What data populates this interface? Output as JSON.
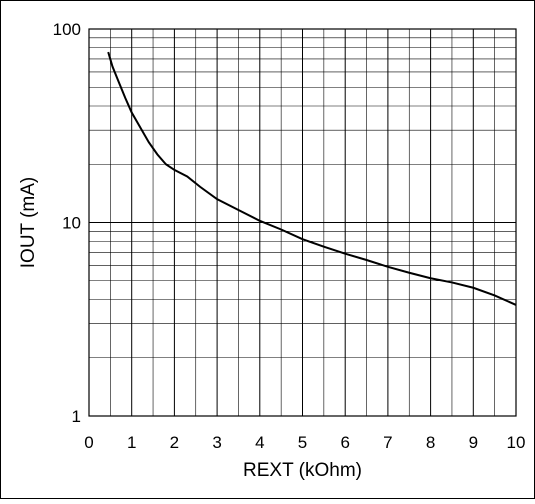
{
  "chart_data": {
    "type": "line",
    "title": "",
    "xlabel": "REXT (kOhm)",
    "ylabel": "IOUT (mA)",
    "xlim": [
      0,
      10
    ],
    "ylim": [
      1,
      100
    ],
    "yscale": "log",
    "grid": true,
    "x_ticks": [
      "0",
      "1",
      "2",
      "3",
      "4",
      "5",
      "6",
      "7",
      "8",
      "9",
      "10"
    ],
    "y_ticks": [
      "1",
      "10",
      "100"
    ],
    "line_color": "#000000",
    "series": [
      {
        "x": [
          0.45,
          0.55,
          0.7,
          0.85,
          1.0,
          1.2,
          1.4,
          1.6,
          1.8,
          2.0,
          2.3,
          2.6,
          3.0,
          3.5,
          4.0,
          4.5,
          5.0,
          5.5,
          6.0,
          6.5,
          7.0,
          7.5,
          8.0,
          8.5,
          9.0,
          9.5,
          10.0
        ],
        "y": [
          76,
          64,
          53,
          44,
          37,
          31,
          26,
          22.5,
          20,
          18.7,
          17.3,
          15.3,
          13.2,
          11.6,
          10.2,
          9.2,
          8.2,
          7.5,
          6.9,
          6.4,
          5.9,
          5.5,
          5.15,
          4.9,
          4.6,
          4.2,
          3.75
        ]
      }
    ]
  }
}
